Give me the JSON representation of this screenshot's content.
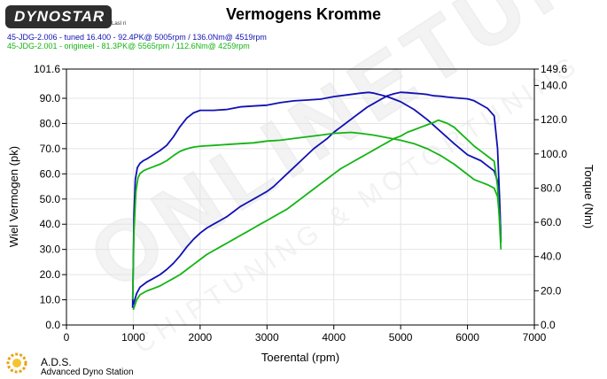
{
  "logo": {
    "text": "DYNOSTAR",
    "small": "Lasl ri"
  },
  "chart_data": {
    "type": "line",
    "title": "Vermogens Kromme",
    "xlabel": "Toerental (rpm)",
    "ylabel_left": "Wiel Vermogen (pk)",
    "ylabel_right": "Torque (Nm)",
    "xlim": [
      0,
      7000
    ],
    "ylim_left": [
      0,
      101.6
    ],
    "ylim_right": [
      0,
      149.6
    ],
    "x_ticks": [
      0,
      1000,
      2000,
      3000,
      4000,
      5000,
      6000,
      7000
    ],
    "y_left_ticks": [
      0.0,
      10.0,
      20.0,
      30.0,
      40.0,
      50.0,
      60.0,
      70.0,
      80.0,
      90.0,
      101.6
    ],
    "y_left_tick_labels": [
      "0.0",
      "10.0",
      "20.0",
      "30.0",
      "40.0",
      "50.0",
      "60.0",
      "70.0",
      "80.0",
      "90.0",
      "101.6"
    ],
    "y_right_ticks": [
      0.0,
      20.0,
      40.0,
      60.0,
      80.0,
      100.0,
      120.0,
      140.0,
      149.6
    ],
    "y_right_tick_labels": [
      "0.0",
      "20.0",
      "40.0",
      "60.0",
      "80.0",
      "100.0",
      "120.0",
      "140.0",
      "149.6"
    ],
    "grid": true,
    "legend": "top-left",
    "series": [
      {
        "name": "45-JDG-2.006 - tuned 16.400 - 92.4PK@ 5005rpm / 136.0Nm@ 4519rpm",
        "color": "#1010b4",
        "power": {
          "axis": "left",
          "x": [
            1000,
            1050,
            1100,
            1200,
            1300,
            1400,
            1500,
            1600,
            1700,
            1800,
            1900,
            2000,
            2100,
            2200,
            2300,
            2400,
            2500,
            2600,
            2700,
            2800,
            2900,
            3000,
            3100,
            3200,
            3300,
            3400,
            3500,
            3600,
            3700,
            3800,
            3900,
            4000,
            4100,
            4200,
            4300,
            4400,
            4500,
            4600,
            4700,
            4800,
            4900,
            5000,
            5100,
            5200,
            5300,
            5400,
            5500,
            5600,
            5700,
            5800,
            5900,
            6000,
            6100,
            6200,
            6300,
            6400,
            6450,
            6480,
            6500
          ],
          "y": [
            8.0,
            12.5,
            15.0,
            17.0,
            18.5,
            20.0,
            22.0,
            24.5,
            27.5,
            31.0,
            34.0,
            36.5,
            38.5,
            40.0,
            41.5,
            43.0,
            45.0,
            47.0,
            48.5,
            50.0,
            51.5,
            53.0,
            55.0,
            57.5,
            60.0,
            62.5,
            65.0,
            67.5,
            70.0,
            72.0,
            74.0,
            76.5,
            78.5,
            80.5,
            82.5,
            84.5,
            86.5,
            88.0,
            89.5,
            91.0,
            91.8,
            92.4,
            92.2,
            92.0,
            91.8,
            91.5,
            91.0,
            90.8,
            90.5,
            90.2,
            90.0,
            89.8,
            89.0,
            87.5,
            86.0,
            83.0,
            70.0,
            50.0,
            33.0
          ]
        },
        "torque": {
          "axis": "right",
          "x": [
            990,
            1010,
            1030,
            1060,
            1100,
            1150,
            1200,
            1300,
            1400,
            1500,
            1600,
            1700,
            1800,
            1900,
            2000,
            2200,
            2400,
            2600,
            2800,
            3000,
            3200,
            3400,
            3600,
            3800,
            4000,
            4200,
            4400,
            4519,
            4600,
            4800,
            5000,
            5200,
            5400,
            5600,
            5800,
            6000,
            6200,
            6300,
            6400,
            6450,
            6480,
            6500
          ],
          "y": [
            10.0,
            65.0,
            85.0,
            92.0,
            94.5,
            96.0,
            97.0,
            99.5,
            102.0,
            105.0,
            110.0,
            116.0,
            121.0,
            124.0,
            125.5,
            125.5,
            126.0,
            127.5,
            128.0,
            128.5,
            130.0,
            131.0,
            131.5,
            132.0,
            133.5,
            134.5,
            135.5,
            136.0,
            135.5,
            133.5,
            130.5,
            126.0,
            120.0,
            113.0,
            106.0,
            99.5,
            96.0,
            93.0,
            90.0,
            84.0,
            70.0,
            50.0
          ]
        }
      },
      {
        "name": "45-JDG-2.001 - origineel - 81.3PK@ 5565rpm / 112.6Nm@ 4259rpm",
        "color": "#14b414",
        "power": {
          "axis": "left",
          "x": [
            1000,
            1050,
            1100,
            1200,
            1300,
            1400,
            1500,
            1600,
            1700,
            1800,
            1900,
            2000,
            2100,
            2200,
            2300,
            2400,
            2500,
            2600,
            2700,
            2800,
            2900,
            3000,
            3100,
            3200,
            3300,
            3400,
            3500,
            3600,
            3700,
            3800,
            3900,
            4000,
            4100,
            4200,
            4300,
            4400,
            4500,
            4600,
            4700,
            4800,
            4900,
            5000,
            5100,
            5200,
            5300,
            5400,
            5500,
            5565,
            5600,
            5700,
            5800,
            5900,
            6000,
            6100,
            6200,
            6300,
            6400,
            6450,
            6480,
            6500
          ],
          "y": [
            6.0,
            10.0,
            12.0,
            13.5,
            14.5,
            15.5,
            17.0,
            18.5,
            20.0,
            22.0,
            24.0,
            26.0,
            28.0,
            29.5,
            31.0,
            32.5,
            34.0,
            35.5,
            37.0,
            38.5,
            40.0,
            41.5,
            43.0,
            44.5,
            46.0,
            48.0,
            50.0,
            52.0,
            54.0,
            56.0,
            58.0,
            60.0,
            62.0,
            63.5,
            65.0,
            66.5,
            68.0,
            69.5,
            71.0,
            72.5,
            74.0,
            75.0,
            76.5,
            77.5,
            78.5,
            79.5,
            80.5,
            81.3,
            81.0,
            80.0,
            78.5,
            76.0,
            73.5,
            71.0,
            69.0,
            67.0,
            65.0,
            55.0,
            40.0,
            30.0
          ]
        },
        "torque": {
          "axis": "right",
          "x": [
            990,
            1010,
            1040,
            1070,
            1100,
            1150,
            1200,
            1300,
            1400,
            1500,
            1600,
            1700,
            1800,
            1900,
            2000,
            2200,
            2400,
            2600,
            2800,
            3000,
            3200,
            3400,
            3600,
            3800,
            4000,
            4259,
            4400,
            4600,
            4800,
            5000,
            5200,
            5400,
            5600,
            5800,
            6000,
            6100,
            6200,
            6300,
            6400,
            6450,
            6480,
            6500
          ],
          "y": [
            15.0,
            55.0,
            78.0,
            86.0,
            88.5,
            90.0,
            91.0,
            92.5,
            94.0,
            96.0,
            99.0,
            101.5,
            103.0,
            104.0,
            104.5,
            105.0,
            105.5,
            106.0,
            106.5,
            107.5,
            108.0,
            109.0,
            110.0,
            111.0,
            112.0,
            112.6,
            112.0,
            111.0,
            109.5,
            108.0,
            106.0,
            103.0,
            99.0,
            94.0,
            88.0,
            85.0,
            83.5,
            82.0,
            80.0,
            75.0,
            62.0,
            48.0
          ]
        }
      }
    ]
  },
  "footer": {
    "ads_name": "A.D.S.",
    "ads_sub": "Advanced Dyno Station"
  }
}
